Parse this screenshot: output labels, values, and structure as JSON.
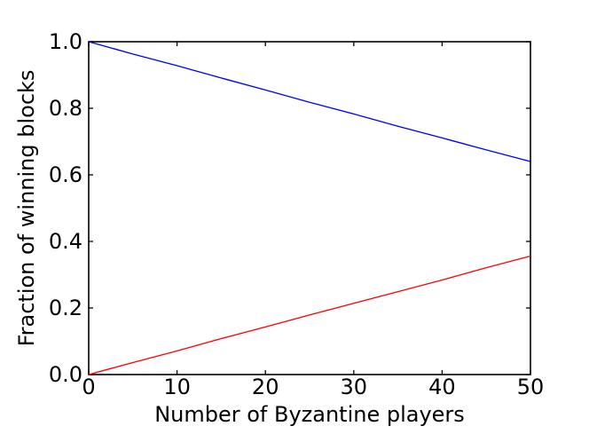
{
  "figure": {
    "background": "#ffffff",
    "axis_color": "#000000"
  },
  "chart_data": {
    "type": "line",
    "title": "",
    "xlabel": "Number of Byzantine players",
    "ylabel": "Fraction of winning blocks",
    "xlim": [
      0,
      50
    ],
    "ylim": [
      0.0,
      1.0
    ],
    "grid": false,
    "legend": "none",
    "markers": "none",
    "xticks": {
      "values": [
        0,
        10,
        20,
        30,
        40,
        50
      ],
      "labels": [
        "0",
        "10",
        "20",
        "30",
        "40",
        "50"
      ]
    },
    "yticks": {
      "values": [
        0.0,
        0.2,
        0.4,
        0.6,
        0.8,
        1.0
      ],
      "labels": [
        "0.0",
        "0.2",
        "0.4",
        "0.6",
        "0.8",
        "1.0"
      ]
    },
    "x": [
      0,
      5,
      10,
      15,
      20,
      25,
      30,
      35,
      40,
      45,
      50
    ],
    "series": [
      {
        "name": "upper-blue-line",
        "color": "#0000ff",
        "values": [
          1.0,
          0.963,
          0.928,
          0.891,
          0.855,
          0.818,
          0.783,
          0.746,
          0.711,
          0.675,
          0.64
        ]
      },
      {
        "name": "lower-red-line",
        "color": "#ff0000",
        "values": [
          0.0,
          0.036,
          0.071,
          0.108,
          0.143,
          0.179,
          0.214,
          0.249,
          0.284,
          0.321,
          0.356
        ]
      }
    ]
  }
}
